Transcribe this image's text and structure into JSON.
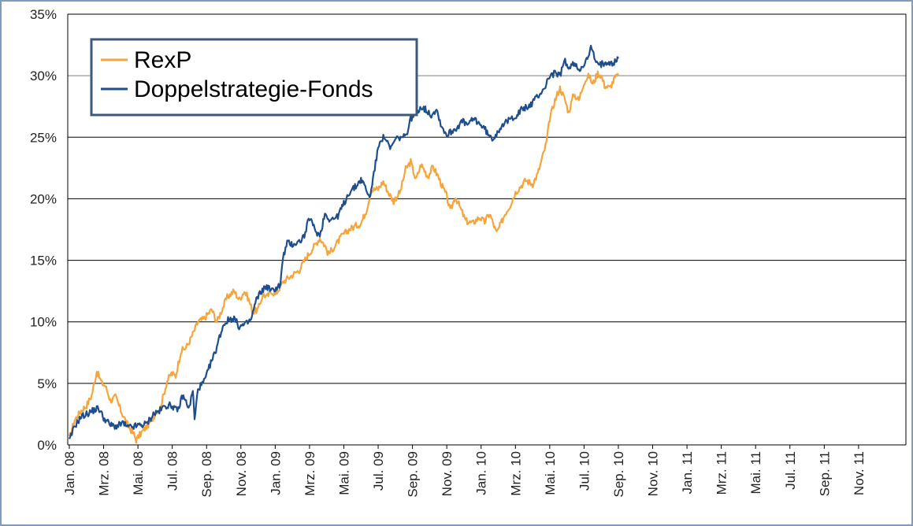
{
  "chart_data": {
    "type": "line",
    "title": "",
    "xlabel": "",
    "ylabel": "",
    "ylim": [
      0,
      35
    ],
    "y_ticks": [
      0,
      5,
      10,
      15,
      20,
      25,
      30,
      35
    ],
    "y_tick_labels": [
      "0%",
      "5%",
      "10%",
      "15%",
      "20%",
      "25%",
      "30%",
      "35%"
    ],
    "grid": "horizontal",
    "legend_position": "top-left",
    "categories": [
      "Jan. 08",
      "Mrz. 08",
      "Mai. 08",
      "Jul. 08",
      "Sep. 08",
      "Nov. 08",
      "Jan. 09",
      "Mrz. 09",
      "Mai. 09",
      "Jul. 09",
      "Sep. 09",
      "Nov. 09",
      "Jan. 10",
      "Mrz. 10",
      "Mai. 10",
      "Jul. 10",
      "Sep. 10",
      "Nov. 10",
      "Jan. 11",
      "Mrz. 11",
      "Mai. 11",
      "Jul. 11",
      "Sep. 11",
      "Nov. 11"
    ],
    "x_month_start": "Jan. 08",
    "x_month_end": "Dez. 11",
    "series": [
      {
        "name": "RexP",
        "color": "#f5a53c",
        "points": [
          [
            0,
            0.5
          ],
          [
            0.3,
            2.0
          ],
          [
            0.7,
            2.8
          ],
          [
            1.0,
            3.2
          ],
          [
            1.3,
            4.0
          ],
          [
            1.6,
            6.0
          ],
          [
            1.9,
            5.0
          ],
          [
            2.1,
            4.8
          ],
          [
            2.4,
            3.6
          ],
          [
            2.7,
            3.9
          ],
          [
            3.0,
            2.8
          ],
          [
            3.4,
            1.6
          ],
          [
            3.7,
            1.0
          ],
          [
            3.9,
            0.4
          ],
          [
            4.1,
            0.8
          ],
          [
            4.5,
            1.5
          ],
          [
            4.8,
            2.0
          ],
          [
            5.1,
            2.8
          ],
          [
            5.3,
            3.0
          ],
          [
            5.7,
            5.2
          ],
          [
            5.95,
            5.8
          ],
          [
            6.2,
            5.6
          ],
          [
            6.5,
            7.6
          ],
          [
            6.8,
            7.9
          ],
          [
            7.0,
            8.4
          ],
          [
            7.2,
            9.0
          ],
          [
            7.5,
            10.0
          ],
          [
            7.8,
            10.2
          ],
          [
            8.0,
            10.5
          ],
          [
            8.3,
            11.0
          ],
          [
            8.6,
            10.0
          ],
          [
            8.9,
            11.0
          ],
          [
            9.2,
            12.0
          ],
          [
            9.6,
            12.5
          ],
          [
            9.9,
            11.8
          ],
          [
            10.2,
            12.5
          ],
          [
            10.4,
            12.0
          ],
          [
            10.7,
            10.8
          ],
          [
            11.0,
            11.0
          ],
          [
            11.3,
            12.3
          ],
          [
            11.5,
            12.0
          ],
          [
            11.8,
            12.5
          ],
          [
            12.0,
            12.2
          ],
          [
            12.5,
            13.3
          ],
          [
            13.0,
            13.8
          ],
          [
            13.4,
            14.2
          ],
          [
            13.8,
            15.2
          ],
          [
            14.2,
            16.0
          ],
          [
            14.6,
            16.8
          ],
          [
            14.9,
            16.2
          ],
          [
            15.1,
            15.5
          ],
          [
            15.5,
            16.2
          ],
          [
            15.9,
            17.0
          ],
          [
            16.3,
            17.5
          ],
          [
            16.7,
            17.8
          ],
          [
            17.0,
            18.0
          ],
          [
            17.3,
            19.0
          ],
          [
            17.6,
            20.7
          ],
          [
            18.0,
            20.8
          ],
          [
            18.3,
            21.4
          ],
          [
            18.6,
            20.5
          ],
          [
            18.9,
            19.8
          ],
          [
            19.3,
            20.6
          ],
          [
            19.6,
            22.4
          ],
          [
            19.9,
            23.0
          ],
          [
            20.2,
            21.5
          ],
          [
            20.5,
            22.8
          ],
          [
            20.9,
            21.8
          ],
          [
            21.2,
            22.6
          ],
          [
            21.5,
            21.8
          ],
          [
            21.8,
            20.8
          ],
          [
            22.0,
            20.2
          ],
          [
            22.2,
            19.0
          ],
          [
            22.5,
            20.2
          ],
          [
            22.8,
            19.2
          ],
          [
            23.1,
            18.2
          ],
          [
            23.5,
            18.0
          ],
          [
            23.9,
            18.5
          ],
          [
            24.2,
            18.1
          ],
          [
            24.5,
            18.8
          ],
          [
            24.9,
            17.2
          ],
          [
            25.1,
            17.8
          ],
          [
            25.4,
            18.8
          ],
          [
            25.7,
            19.5
          ],
          [
            26.0,
            20.5
          ],
          [
            26.3,
            21.0
          ],
          [
            26.6,
            21.5
          ],
          [
            27.0,
            21.2
          ],
          [
            27.3,
            22.0
          ],
          [
            27.5,
            23.0
          ],
          [
            27.8,
            24.5
          ],
          [
            28.0,
            26.5
          ],
          [
            28.3,
            28.0
          ],
          [
            28.6,
            29.0
          ],
          [
            28.9,
            28.0
          ],
          [
            29.1,
            27.0
          ],
          [
            29.4,
            28.5
          ],
          [
            29.7,
            28.0
          ],
          [
            30.0,
            29.5
          ],
          [
            30.3,
            30.0
          ],
          [
            30.5,
            29.3
          ],
          [
            30.8,
            30.2
          ],
          [
            31.0,
            30.0
          ],
          [
            31.2,
            29.2
          ],
          [
            31.5,
            29.0
          ],
          [
            31.8,
            29.8
          ],
          [
            32.0,
            30.0
          ]
        ]
      },
      {
        "name": "Doppelstrategie-Fonds",
        "color": "#1f4e8c",
        "points": [
          [
            0,
            0.3
          ],
          [
            0.3,
            1.5
          ],
          [
            0.7,
            2.3
          ],
          [
            1.0,
            2.5
          ],
          [
            1.4,
            2.8
          ],
          [
            1.7,
            3.0
          ],
          [
            2.0,
            2.2
          ],
          [
            2.4,
            1.6
          ],
          [
            2.8,
            1.5
          ],
          [
            3.1,
            1.8
          ],
          [
            3.4,
            1.4
          ],
          [
            3.8,
            1.5
          ],
          [
            4.1,
            1.6
          ],
          [
            4.5,
            1.7
          ],
          [
            4.9,
            2.5
          ],
          [
            5.3,
            2.8
          ],
          [
            5.6,
            3.2
          ],
          [
            6.0,
            3.2
          ],
          [
            6.3,
            2.7
          ],
          [
            6.6,
            4.0
          ],
          [
            6.8,
            3.5
          ],
          [
            7.0,
            3.0
          ],
          [
            7.2,
            4.5
          ],
          [
            7.3,
            2.0
          ],
          [
            7.5,
            4.6
          ],
          [
            7.8,
            5.0
          ],
          [
            8.0,
            5.6
          ],
          [
            8.2,
            6.5
          ],
          [
            8.5,
            7.5
          ],
          [
            8.8,
            9.0
          ],
          [
            9.0,
            9.8
          ],
          [
            9.3,
            10.2
          ],
          [
            9.6,
            10.3
          ],
          [
            9.9,
            9.6
          ],
          [
            10.3,
            9.8
          ],
          [
            10.6,
            10.2
          ],
          [
            10.9,
            11.8
          ],
          [
            11.2,
            12.5
          ],
          [
            11.5,
            12.9
          ],
          [
            11.8,
            12.5
          ],
          [
            12.1,
            12.8
          ],
          [
            12.3,
            13.0
          ],
          [
            12.45,
            15.2
          ],
          [
            12.7,
            16.4
          ],
          [
            13.0,
            16.3
          ],
          [
            13.4,
            16.5
          ],
          [
            13.7,
            17.0
          ],
          [
            14.0,
            18.5
          ],
          [
            14.3,
            17.5
          ],
          [
            14.6,
            17.0
          ],
          [
            14.9,
            18.8
          ],
          [
            15.2,
            18.3
          ],
          [
            15.6,
            18.5
          ],
          [
            15.9,
            19.3
          ],
          [
            16.3,
            20.5
          ],
          [
            16.7,
            21.0
          ],
          [
            17.0,
            21.6
          ],
          [
            17.3,
            20.8
          ],
          [
            17.5,
            20.0
          ],
          [
            17.8,
            22.5
          ],
          [
            18.1,
            24.8
          ],
          [
            18.4,
            25.0
          ],
          [
            18.7,
            24.0
          ],
          [
            19.0,
            24.8
          ],
          [
            19.3,
            25.0
          ],
          [
            19.6,
            25.0
          ],
          [
            19.9,
            26.5
          ],
          [
            20.2,
            27.0
          ],
          [
            20.5,
            27.5
          ],
          [
            20.8,
            27.2
          ],
          [
            21.1,
            26.8
          ],
          [
            21.4,
            27.3
          ],
          [
            21.6,
            26.3
          ],
          [
            21.8,
            25.6
          ],
          [
            22.0,
            25.2
          ],
          [
            22.3,
            25.5
          ],
          [
            22.6,
            25.8
          ],
          [
            22.9,
            26.3
          ],
          [
            23.2,
            26.0
          ],
          [
            23.6,
            26.5
          ],
          [
            24.0,
            26.0
          ],
          [
            24.3,
            25.5
          ],
          [
            24.6,
            24.8
          ],
          [
            24.9,
            25.3
          ],
          [
            25.2,
            26.0
          ],
          [
            25.5,
            26.2
          ],
          [
            25.8,
            26.6
          ],
          [
            26.1,
            26.8
          ],
          [
            26.4,
            27.3
          ],
          [
            26.8,
            27.5
          ],
          [
            27.1,
            28.0
          ],
          [
            27.4,
            28.5
          ],
          [
            27.7,
            29.0
          ],
          [
            28.0,
            30.0
          ],
          [
            28.3,
            30.2
          ],
          [
            28.6,
            30.0
          ],
          [
            28.9,
            31.3
          ],
          [
            29.1,
            30.5
          ],
          [
            29.4,
            31.0
          ],
          [
            29.7,
            30.5
          ],
          [
            30.0,
            31.0
          ],
          [
            30.2,
            31.3
          ],
          [
            30.4,
            32.3
          ],
          [
            30.6,
            31.5
          ],
          [
            30.8,
            30.8
          ],
          [
            31.1,
            31.0
          ],
          [
            31.4,
            31.2
          ],
          [
            31.7,
            31.0
          ],
          [
            32.0,
            31.4
          ]
        ]
      }
    ]
  }
}
